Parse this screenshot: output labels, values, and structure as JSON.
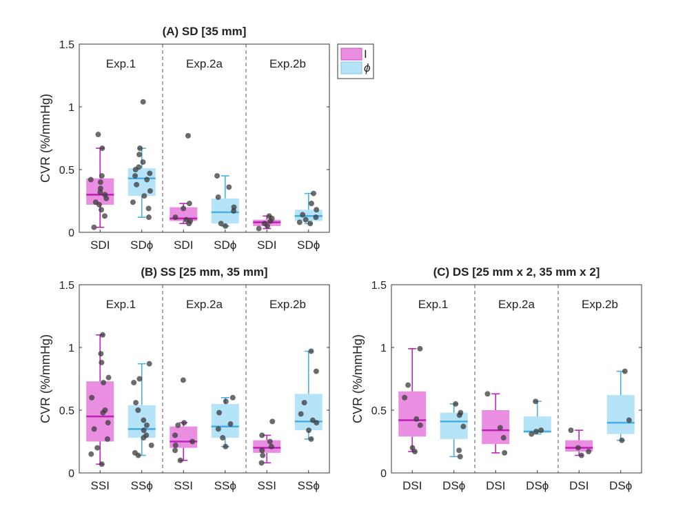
{
  "chart_data": {
    "type": "box",
    "legend": {
      "position": "top-right of panel A",
      "entries": [
        {
          "label": "I",
          "color": "#ea8ee2"
        },
        {
          "label": "ϕ",
          "color": "#b5e4f8"
        }
      ]
    },
    "colors": {
      "I_box": "#ea8ee2",
      "I_line": "#c020b8",
      "phi_box": "#b5e4f8",
      "phi_line": "#4aaee0",
      "dots": "#3b3b3b"
    },
    "panels": [
      {
        "id": "A",
        "title": "(A) SD [35 mm]",
        "ylabel": "CVR (%/mmHg)",
        "ylim": [
          0,
          1.5
        ],
        "yticks": [
          "0",
          "0.5",
          "1",
          "1.5"
        ],
        "groups": [
          "Exp.1",
          "Exp.2a",
          "Exp.2b"
        ],
        "categories": [
          "SDI",
          "SDϕ",
          "SDI",
          "SDϕ",
          "SDI",
          "SDϕ"
        ],
        "boxes": [
          {
            "series": "I",
            "min": 0.04,
            "q1": 0.22,
            "median": 0.3,
            "q3": 0.43,
            "max": 0.67,
            "points": [
              0.04,
              0.13,
              0.18,
              0.22,
              0.24,
              0.27,
              0.3,
              0.32,
              0.35,
              0.4,
              0.42,
              0.45,
              0.67,
              0.78
            ]
          },
          {
            "series": "phi",
            "min": 0.12,
            "q1": 0.29,
            "median": 0.43,
            "q3": 0.51,
            "max": 0.67,
            "points": [
              0.12,
              0.19,
              0.24,
              0.29,
              0.33,
              0.38,
              0.42,
              0.45,
              0.47,
              0.5,
              0.52,
              0.56,
              0.62,
              0.67,
              1.04
            ]
          },
          {
            "series": "I",
            "min": 0.07,
            "q1": 0.09,
            "median": 0.11,
            "q3": 0.2,
            "max": 0.23,
            "points": [
              0.07,
              0.09,
              0.1,
              0.12,
              0.19,
              0.23,
              0.77
            ]
          },
          {
            "series": "phi",
            "min": 0.05,
            "q1": 0.07,
            "median": 0.16,
            "q3": 0.27,
            "max": 0.45,
            "points": [
              0.05,
              0.07,
              0.17,
              0.2,
              0.28,
              0.36,
              0.45
            ]
          },
          {
            "series": "I",
            "min": 0.03,
            "q1": 0.05,
            "median": 0.08,
            "q3": 0.1,
            "max": 0.13,
            "points": [
              0.03,
              0.05,
              0.07,
              0.09,
              0.11,
              0.13
            ]
          },
          {
            "series": "phi",
            "min": 0.07,
            "q1": 0.09,
            "median": 0.13,
            "q3": 0.18,
            "max": 0.31,
            "points": [
              0.07,
              0.08,
              0.1,
              0.12,
              0.14,
              0.18,
              0.23,
              0.31
            ]
          }
        ]
      },
      {
        "id": "B",
        "title": "(B) SS [25 mm, 35 mm]",
        "ylabel": "CVR (%/mmHg)",
        "ylim": [
          0,
          1.5
        ],
        "yticks": [
          "0",
          "0.5",
          "1",
          "1.5"
        ],
        "groups": [
          "Exp.1",
          "Exp.2a",
          "Exp.2b"
        ],
        "categories": [
          "SSI",
          "SSϕ",
          "SSI",
          "SSϕ",
          "SSI",
          "SSϕ"
        ],
        "boxes": [
          {
            "series": "I",
            "min": 0.07,
            "q1": 0.25,
            "median": 0.45,
            "q3": 0.73,
            "max": 1.1,
            "points": [
              0.07,
              0.15,
              0.2,
              0.27,
              0.35,
              0.4,
              0.48,
              0.5,
              0.6,
              0.72,
              0.76,
              0.88,
              0.95,
              1.1
            ]
          },
          {
            "series": "phi",
            "min": 0.14,
            "q1": 0.28,
            "median": 0.35,
            "q3": 0.54,
            "max": 0.87,
            "points": [
              0.14,
              0.16,
              0.22,
              0.28,
              0.3,
              0.34,
              0.38,
              0.42,
              0.5,
              0.56,
              0.72,
              0.75,
              0.87
            ]
          },
          {
            "series": "I",
            "min": 0.1,
            "q1": 0.2,
            "median": 0.25,
            "q3": 0.37,
            "max": 0.4,
            "points": [
              0.1,
              0.18,
              0.22,
              0.25,
              0.3,
              0.38,
              0.4,
              0.74
            ]
          },
          {
            "series": "phi",
            "min": 0.21,
            "q1": 0.28,
            "median": 0.37,
            "q3": 0.55,
            "max": 0.6,
            "points": [
              0.21,
              0.28,
              0.35,
              0.39,
              0.48,
              0.57,
              0.6
            ]
          },
          {
            "series": "I",
            "min": 0.08,
            "q1": 0.16,
            "median": 0.2,
            "q3": 0.26,
            "max": 0.3,
            "points": [
              0.08,
              0.14,
              0.18,
              0.21,
              0.25,
              0.3,
              0.41
            ]
          },
          {
            "series": "phi",
            "min": 0.27,
            "q1": 0.34,
            "median": 0.41,
            "q3": 0.63,
            "max": 0.97,
            "points": [
              0.27,
              0.34,
              0.4,
              0.42,
              0.47,
              0.56,
              0.81,
              0.97
            ]
          }
        ]
      },
      {
        "id": "C",
        "title": "(C) DS [25 mm x 2, 35 mm x 2]",
        "ylabel": "CVR (%/mmHg)",
        "ylim": [
          0,
          1.5
        ],
        "yticks": [
          "0",
          "0.5",
          "1",
          "1.5"
        ],
        "groups": [
          "Exp.1",
          "Exp.2a",
          "Exp.2b"
        ],
        "categories": [
          "DSI",
          "DSϕ",
          "DSI",
          "DSϕ",
          "DSI",
          "DSϕ"
        ],
        "boxes": [
          {
            "series": "I",
            "min": 0.17,
            "q1": 0.29,
            "median": 0.42,
            "q3": 0.65,
            "max": 0.99,
            "points": [
              0.17,
              0.2,
              0.38,
              0.43,
              0.6,
              0.7,
              0.99
            ]
          },
          {
            "series": "phi",
            "min": 0.13,
            "q1": 0.27,
            "median": 0.41,
            "q3": 0.48,
            "max": 0.55,
            "points": [
              0.13,
              0.18,
              0.37,
              0.46,
              0.48,
              0.55
            ]
          },
          {
            "series": "I",
            "min": 0.16,
            "q1": 0.23,
            "median": 0.34,
            "q3": 0.5,
            "max": 0.63,
            "points": [
              0.16,
              0.28,
              0.36,
              0.63
            ]
          },
          {
            "series": "phi",
            "min": 0.31,
            "q1": 0.32,
            "median": 0.33,
            "q3": 0.45,
            "max": 0.57,
            "points": [
              0.31,
              0.33,
              0.34,
              0.57
            ]
          },
          {
            "series": "I",
            "min": 0.14,
            "q1": 0.17,
            "median": 0.2,
            "q3": 0.26,
            "max": 0.34,
            "points": [
              0.14,
              0.17,
              0.2,
              0.34
            ]
          },
          {
            "series": "phi",
            "min": 0.26,
            "q1": 0.31,
            "median": 0.4,
            "q3": 0.62,
            "max": 0.81,
            "points": [
              0.26,
              0.42,
              0.81
            ]
          }
        ]
      }
    ]
  }
}
